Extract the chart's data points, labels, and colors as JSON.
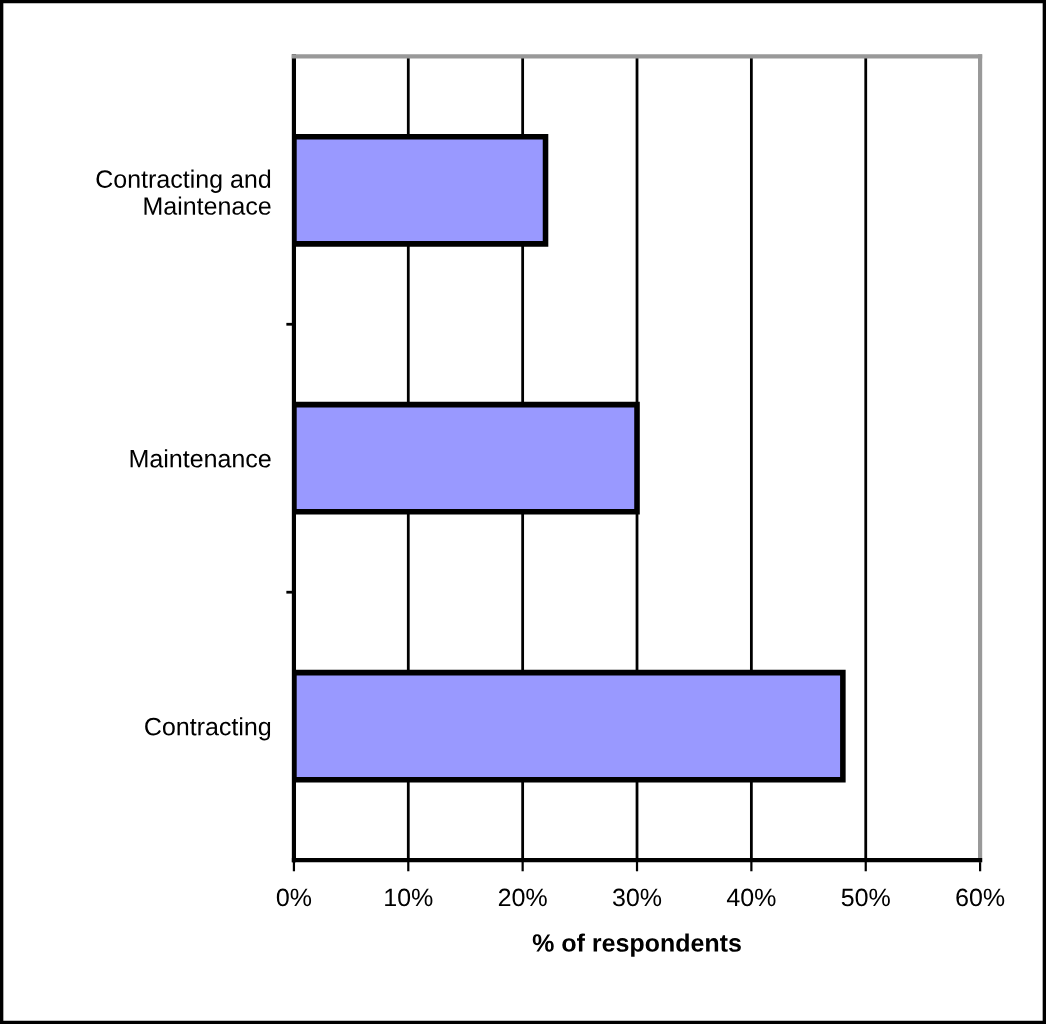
{
  "chart_data": {
    "type": "bar",
    "orientation": "horizontal",
    "xlabel": "% of respondents",
    "categories": [
      "Contracting and\nMaintenace",
      "Maintenance",
      "Contracting"
    ],
    "values": [
      22,
      30,
      48
    ],
    "color": "#9999ff",
    "xlim": [
      0,
      60
    ],
    "xticks": [
      {
        "value": 0,
        "label": "0%"
      },
      {
        "value": 10,
        "label": "10%"
      },
      {
        "value": 20,
        "label": "20%"
      },
      {
        "value": 30,
        "label": "30%"
      },
      {
        "value": 40,
        "label": "40%"
      },
      {
        "value": 50,
        "label": "50%"
      },
      {
        "value": 60,
        "label": "60%"
      }
    ],
    "grid": "x",
    "legend": false
  }
}
